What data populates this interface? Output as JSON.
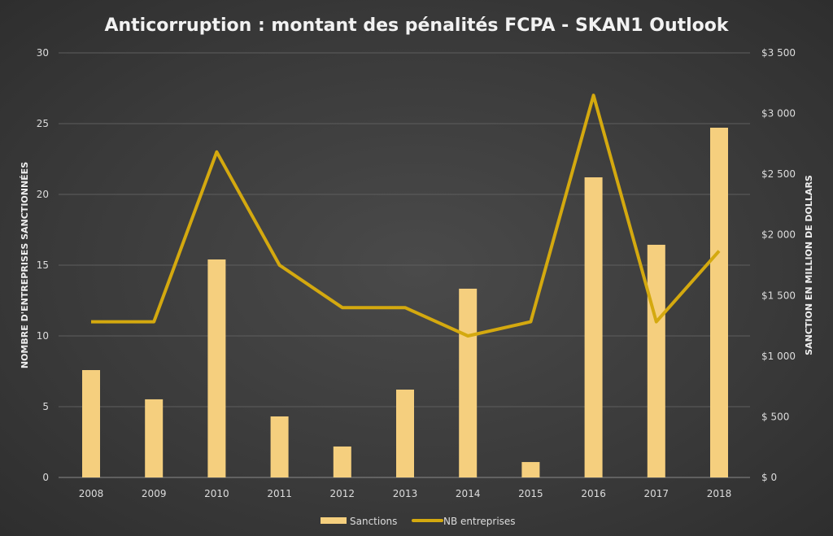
{
  "chart_data": {
    "type": "bar+line",
    "title": "Anticorruption : montant des pénalités FCPA - SKAN1 Outlook",
    "categories": [
      "2008",
      "2009",
      "2010",
      "2011",
      "2012",
      "2013",
      "2014",
      "2015",
      "2016",
      "2017",
      "2018"
    ],
    "series": [
      {
        "name": "Sanctions",
        "type": "bar",
        "axis": "right",
        "color": "#f5cf7e",
        "values": [
          885,
          644,
          1797,
          503,
          255,
          724,
          1556,
          127,
          2474,
          1918,
          2883
        ]
      },
      {
        "name": "NB entreprises",
        "type": "line",
        "axis": "left",
        "color": "#d4a90f",
        "values": [
          11,
          11,
          23,
          15,
          12,
          12,
          10,
          11,
          27,
          11,
          16
        ]
      }
    ],
    "ylabel_left": "NOMBRE D'ENTREPRISES SANCTIONNÉES",
    "ylabel_right": "SANCTION EN MILLION DE DOLLARS",
    "ylim_left": [
      0,
      30
    ],
    "ylim_right": [
      0,
      3500
    ],
    "yticks_left": [
      "0",
      "5",
      "10",
      "15",
      "20",
      "25",
      "30"
    ],
    "yticks_right": [
      "$ 0",
      "$ 500",
      "$1 000",
      "$1 500",
      "$2 000",
      "$2 500",
      "$3 000",
      "$3 500"
    ],
    "grid": true,
    "legend": "bottom"
  }
}
